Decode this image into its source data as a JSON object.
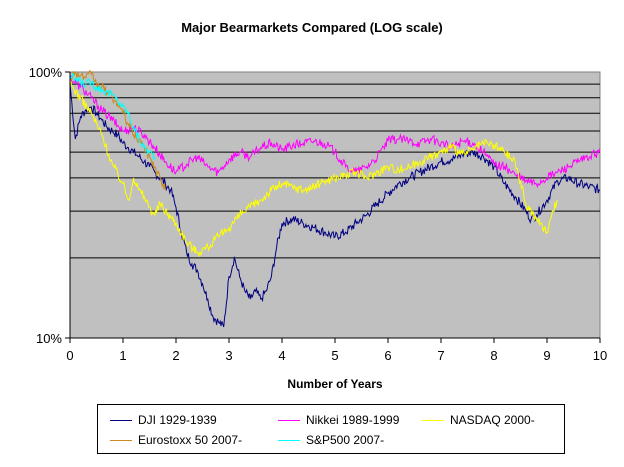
{
  "chart_data": {
    "type": "line",
    "title": "Major Bearmarkets Compared (LOG scale)",
    "xlabel": "Number of Years",
    "ylabel": "",
    "xlim": [
      0,
      10
    ],
    "ylim": [
      10,
      100
    ],
    "y_scale": "log",
    "x_ticks": [
      "0",
      "1",
      "2",
      "3",
      "4",
      "5",
      "6",
      "7",
      "8",
      "9",
      "10"
    ],
    "y_tick_labels": [
      "10%",
      "100%"
    ],
    "grid": "horizontal",
    "plot_background": "#c0c0c0",
    "legend_position": "bottom",
    "series": [
      {
        "name": "DJI 1929-1939",
        "color": "#000080",
        "x": [
          0,
          0.1,
          0.2,
          0.3,
          0.4,
          0.5,
          0.6,
          0.7,
          0.8,
          0.9,
          1.0,
          1.1,
          1.2,
          1.3,
          1.4,
          1.5,
          1.6,
          1.7,
          1.8,
          1.9,
          2.0,
          2.1,
          2.2,
          2.3,
          2.4,
          2.5,
          2.6,
          2.7,
          2.8,
          2.9,
          3.0,
          3.1,
          3.2,
          3.3,
          3.4,
          3.5,
          3.6,
          3.7,
          3.8,
          3.9,
          4.0,
          4.2,
          4.4,
          4.6,
          4.8,
          5.0,
          5.2,
          5.4,
          5.6,
          5.8,
          6.0,
          6.2,
          6.4,
          6.6,
          6.8,
          7.0,
          7.2,
          7.4,
          7.6,
          7.8,
          8.0,
          8.2,
          8.4,
          8.6,
          8.7,
          8.8,
          9.0,
          9.2,
          9.4,
          9.6,
          9.8,
          10.0
        ],
        "values": [
          90,
          56,
          68,
          72,
          74,
          70,
          66,
          62,
          60,
          58,
          54,
          52,
          50,
          48,
          46,
          44,
          42,
          40,
          38,
          36,
          31,
          25,
          21,
          19,
          18,
          16,
          14,
          12,
          11.5,
          11,
          17,
          20,
          17,
          15,
          14,
          15,
          14,
          15,
          17,
          22,
          27,
          28,
          27,
          26,
          25,
          24,
          25,
          27,
          29,
          32,
          35,
          38,
          40,
          42,
          44,
          46,
          47,
          49,
          50,
          48,
          44,
          38,
          34,
          30,
          28,
          29,
          33,
          39,
          40,
          38,
          37,
          36
        ]
      },
      {
        "name": "Nikkei 1989-1999",
        "color": "#ff00ff",
        "x": [
          0,
          0.2,
          0.4,
          0.6,
          0.8,
          1.0,
          1.2,
          1.4,
          1.6,
          1.8,
          2.0,
          2.2,
          2.4,
          2.6,
          2.8,
          3.0,
          3.2,
          3.4,
          3.6,
          3.8,
          4.0,
          4.2,
          4.4,
          4.6,
          4.8,
          5.0,
          5.2,
          5.4,
          5.6,
          5.8,
          6.0,
          6.2,
          6.4,
          6.6,
          6.8,
          7.0,
          7.2,
          7.4,
          7.6,
          7.8,
          8.0,
          8.2,
          8.4,
          8.6,
          8.8,
          9.0,
          9.2,
          9.4,
          9.6,
          9.8,
          10.0
        ],
        "values": [
          95,
          88,
          80,
          72,
          66,
          60,
          62,
          58,
          52,
          46,
          42,
          45,
          48,
          44,
          42,
          47,
          50,
          48,
          52,
          54,
          51,
          53,
          54,
          55,
          54,
          50,
          44,
          42,
          44,
          48,
          55,
          56,
          55,
          54,
          56,
          54,
          52,
          55,
          54,
          50,
          45,
          44,
          41,
          39,
          38,
          40,
          42,
          44,
          46,
          48,
          50
        ]
      },
      {
        "name": "NASDAQ 2000-",
        "color": "#ffff00",
        "x": [
          0,
          0.2,
          0.4,
          0.6,
          0.8,
          1.0,
          1.1,
          1.2,
          1.3,
          1.4,
          1.5,
          1.6,
          1.7,
          1.8,
          2.0,
          2.2,
          2.4,
          2.6,
          2.8,
          3.0,
          3.2,
          3.4,
          3.6,
          3.8,
          4.0,
          4.2,
          4.4,
          4.6,
          4.8,
          5.0,
          5.2,
          5.4,
          5.6,
          5.8,
          6.0,
          6.2,
          6.4,
          6.6,
          6.8,
          7.0,
          7.2,
          7.4,
          7.6,
          7.8,
          8.0,
          8.2,
          8.4,
          8.6,
          8.8,
          9.0,
          9.1,
          9.2
        ],
        "values": [
          90,
          80,
          70,
          58,
          45,
          38,
          33,
          40,
          36,
          34,
          31,
          29,
          32,
          30,
          27,
          23,
          21,
          22,
          24,
          26,
          29,
          31,
          33,
          36,
          38,
          37,
          36,
          37,
          39,
          40,
          41,
          42,
          40,
          42,
          44,
          43,
          44,
          46,
          48,
          50,
          52,
          49,
          51,
          54,
          53,
          50,
          46,
          32,
          28,
          25,
          30,
          33
        ]
      },
      {
        "name": "Eurostoxx 50 2007-",
        "color": "#cc8a1a",
        "x": [
          0,
          0.1,
          0.2,
          0.3,
          0.4,
          0.5,
          0.6,
          0.7,
          0.8,
          0.9,
          1.0,
          1.1,
          1.2,
          1.3,
          1.4,
          1.5,
          1.6,
          1.7,
          1.8
        ],
        "values": [
          95,
          100,
          97,
          95,
          98,
          90,
          88,
          84,
          80,
          76,
          70,
          64,
          58,
          56,
          52,
          48,
          44,
          40,
          36
        ]
      },
      {
        "name": "S&P500 2007-",
        "color": "#00ffff",
        "x": [
          0,
          0.1,
          0.2,
          0.3,
          0.4,
          0.5,
          0.6,
          0.7,
          0.8,
          0.9,
          1.0,
          1.1,
          1.2,
          1.3,
          1.4,
          1.5,
          1.6
        ],
        "values": [
          96,
          94,
          92,
          90,
          92,
          88,
          86,
          84,
          82,
          78,
          74,
          70,
          62,
          56,
          52,
          50,
          48
        ]
      }
    ]
  }
}
